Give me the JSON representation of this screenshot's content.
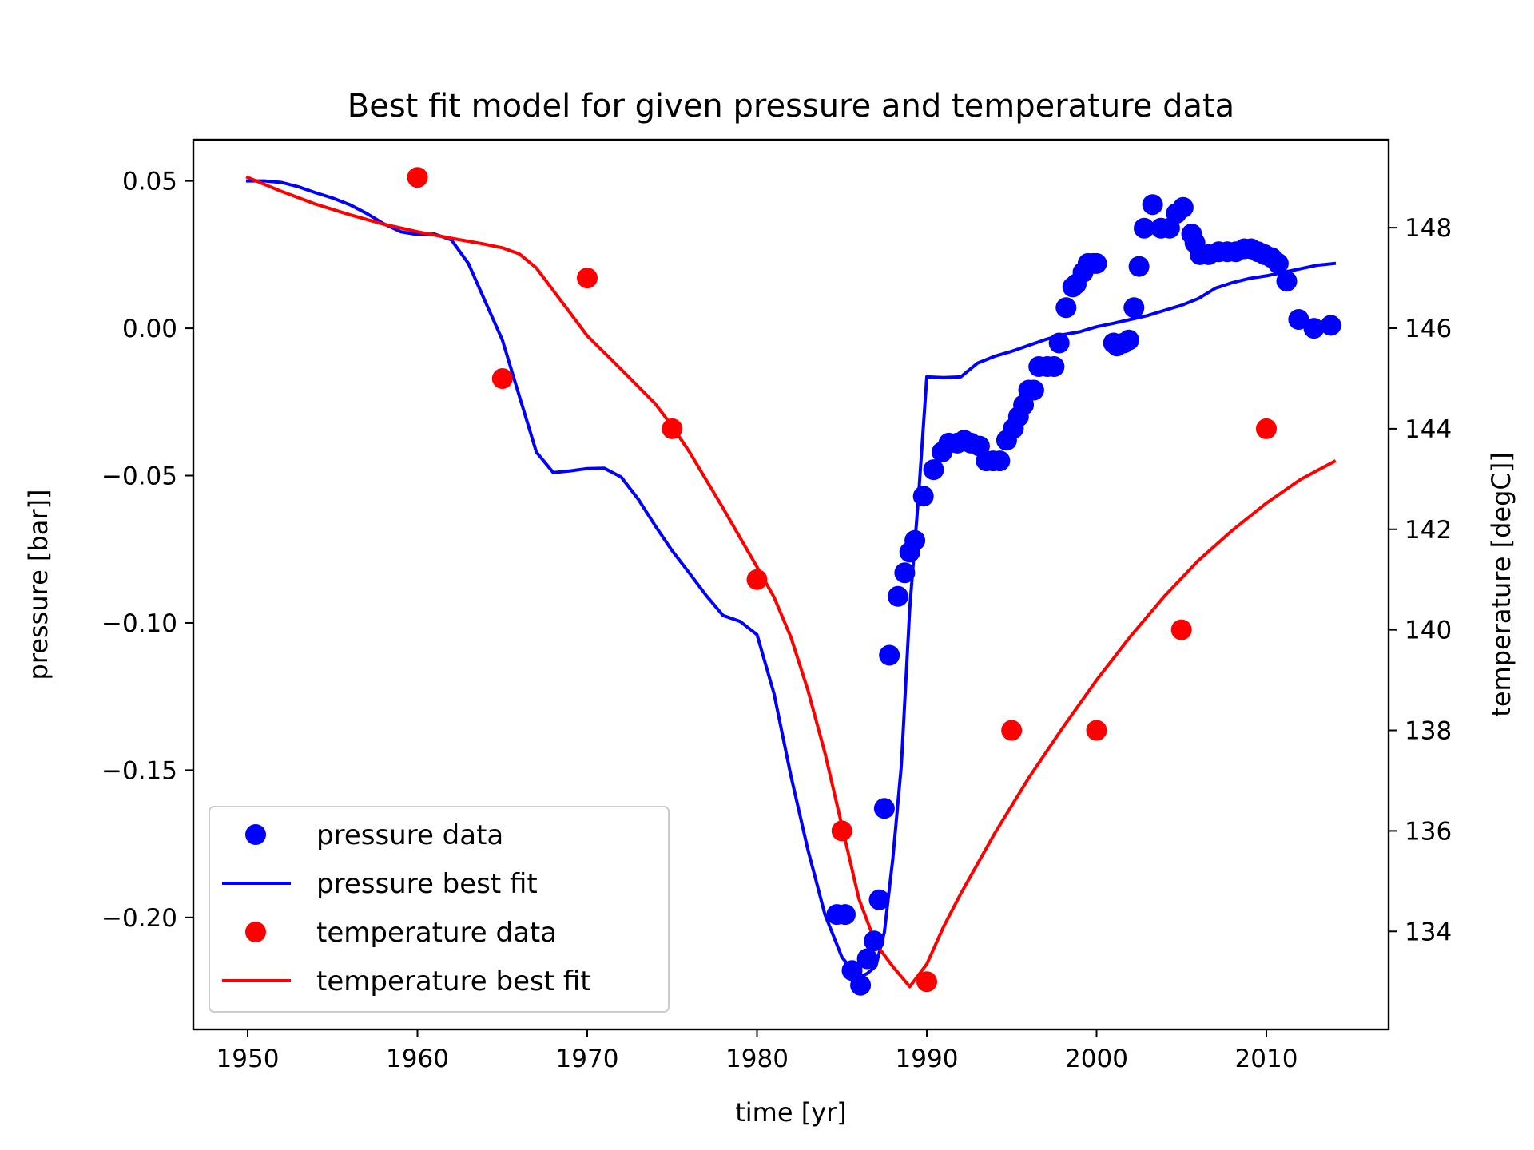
{
  "chart_data": {
    "type": "line",
    "title": "Best fit model for given pressure and temperature data",
    "xlabel": "time [yr]",
    "ylabel": "pressure [bar]]",
    "y2label": "temperature [degC]]",
    "xlim": [
      1946.8,
      2017.2
    ],
    "ylim": [
      -0.238,
      0.064
    ],
    "y2lim": [
      132.05,
      149.75
    ],
    "x_ticks": [
      {
        "value": 1950,
        "label": "1950"
      },
      {
        "value": 1960,
        "label": "1960"
      },
      {
        "value": 1970,
        "label": "1970"
      },
      {
        "value": 1980,
        "label": "1980"
      },
      {
        "value": 1990,
        "label": "1990"
      },
      {
        "value": 2000,
        "label": "2000"
      },
      {
        "value": 2010,
        "label": "2010"
      }
    ],
    "y_ticks": [
      {
        "value": 0.05,
        "label": "0.05"
      },
      {
        "value": 0.0,
        "label": "0.00"
      },
      {
        "value": -0.05,
        "label": "−0.05"
      },
      {
        "value": -0.1,
        "label": "−0.10"
      },
      {
        "value": -0.15,
        "label": "−0.15"
      },
      {
        "value": -0.2,
        "label": "−0.20"
      }
    ],
    "y2_ticks": [
      {
        "value": 134,
        "label": "134"
      },
      {
        "value": 136,
        "label": "136"
      },
      {
        "value": 138,
        "label": "138"
      },
      {
        "value": 140,
        "label": "140"
      },
      {
        "value": 142,
        "label": "142"
      },
      {
        "value": 144,
        "label": "144"
      },
      {
        "value": 146,
        "label": "146"
      },
      {
        "value": 148,
        "label": "148"
      }
    ],
    "grid": false,
    "legend_position": "lower-left",
    "series": [
      {
        "name": "pressure data",
        "kind": "scatter",
        "axis": "left",
        "color": "#0000ff",
        "x": [
          1984.7,
          1985.2,
          1985.6,
          1986.1,
          1986.5,
          1986.9,
          1987.2,
          1987.5,
          1987.8,
          1988.3,
          1988.7,
          1989.0,
          1989.3,
          1989.8,
          1990.4,
          1990.9,
          1991.3,
          1991.8,
          1992.2,
          1992.6,
          1993.1,
          1993.5,
          1993.9,
          1994.3,
          1994.7,
          1995.1,
          1995.4,
          1995.7,
          1996.0,
          1996.3,
          1996.6,
          1997.1,
          1997.5,
          1997.8,
          1998.2,
          1998.6,
          1998.8,
          1999.2,
          1999.5,
          1999.8,
          2000.0,
          2001.0,
          2001.2,
          2001.6,
          2001.9,
          2002.2,
          2002.5,
          2002.8,
          2003.3,
          2003.8,
          2004.3,
          2004.7,
          2005.1,
          2005.6,
          2005.8,
          2006.1,
          2006.6,
          2007.2,
          2007.7,
          2008.2,
          2008.7,
          2009.1,
          2009.5,
          2009.9,
          2010.3,
          2010.7,
          2011.2,
          2011.9,
          2012.8,
          2013.8
        ],
        "y": [
          -0.199,
          -0.199,
          -0.218,
          -0.223,
          -0.214,
          -0.208,
          -0.194,
          -0.163,
          -0.111,
          -0.091,
          -0.083,
          -0.076,
          -0.072,
          -0.057,
          -0.048,
          -0.042,
          -0.039,
          -0.039,
          -0.038,
          -0.039,
          -0.04,
          -0.045,
          -0.045,
          -0.045,
          -0.038,
          -0.034,
          -0.03,
          -0.026,
          -0.021,
          -0.021,
          -0.013,
          -0.013,
          -0.013,
          -0.005,
          0.007,
          0.014,
          0.015,
          0.019,
          0.022,
          0.022,
          0.022,
          -0.005,
          -0.006,
          -0.005,
          -0.004,
          0.007,
          0.021,
          0.034,
          0.042,
          0.034,
          0.034,
          0.039,
          0.041,
          0.032,
          0.029,
          0.025,
          0.025,
          0.026,
          0.026,
          0.026,
          0.027,
          0.027,
          0.026,
          0.025,
          0.024,
          0.022,
          0.016,
          0.003,
          0.0,
          0.001
        ]
      },
      {
        "name": "pressure best fit",
        "kind": "line",
        "axis": "left",
        "color": "#0000ff",
        "x": [
          1950,
          1951,
          1952,
          1953,
          1954,
          1955,
          1956,
          1957,
          1958,
          1959,
          1960,
          1961,
          1962,
          1963,
          1964,
          1965,
          1966,
          1967,
          1968,
          1969,
          1970,
          1971,
          1972,
          1973,
          1974,
          1975,
          1976,
          1977,
          1978,
          1979,
          1980,
          1981,
          1982,
          1983,
          1984,
          1985,
          1986,
          1986.5,
          1987,
          1987.5,
          1988,
          1988.5,
          1989,
          1989.5,
          1990,
          1991,
          1992,
          1993,
          1994,
          1995,
          1996,
          1997,
          1998,
          1999,
          2000,
          2001,
          2002,
          2003,
          2004,
          2005,
          2006,
          2007,
          2008,
          2009,
          2010,
          2011,
          2012,
          2013,
          2014
        ],
        "y": [
          0.05,
          0.05,
          0.0495,
          0.048,
          0.046,
          0.0442,
          0.042,
          0.039,
          0.0355,
          0.0328,
          0.0318,
          0.032,
          0.03,
          0.022,
          0.009,
          -0.004,
          -0.023,
          -0.042,
          -0.049,
          -0.0484,
          -0.0476,
          -0.0475,
          -0.0505,
          -0.058,
          -0.067,
          -0.0755,
          -0.083,
          -0.0907,
          -0.0975,
          -0.0995,
          -0.104,
          -0.124,
          -0.152,
          -0.177,
          -0.199,
          -0.2135,
          -0.2205,
          -0.219,
          -0.2165,
          -0.205,
          -0.18,
          -0.1485,
          -0.095,
          -0.058,
          -0.0165,
          -0.0167,
          -0.0165,
          -0.0118,
          -0.0095,
          -0.0078,
          -0.0058,
          -0.0038,
          -0.0022,
          -0.0012,
          0.0005,
          0.0017,
          0.003,
          0.0043,
          0.0061,
          0.0078,
          0.0101,
          0.0136,
          0.0155,
          0.0169,
          0.0178,
          0.019,
          0.0202,
          0.0214,
          0.022
        ]
      },
      {
        "name": "temperature data",
        "kind": "scatter",
        "axis": "right",
        "color": "#ff0000",
        "x": [
          1960,
          1965,
          1970,
          1975,
          1980,
          1985,
          1990,
          1995,
          2000,
          2005,
          2010
        ],
        "y": [
          149,
          145,
          147,
          144,
          141,
          136,
          133,
          138,
          138,
          140,
          144
        ]
      },
      {
        "name": "temperature best fit",
        "kind": "line",
        "axis": "right",
        "color": "#ff0000",
        "x": [
          1950,
          1952,
          1954,
          1956,
          1958,
          1960,
          1962,
          1964,
          1965,
          1966,
          1967,
          1968,
          1969,
          1970,
          1972,
          1974,
          1975,
          1976,
          1978,
          1980,
          1981,
          1982,
          1983,
          1984,
          1985,
          1986,
          1987,
          1988,
          1989,
          1990,
          1991,
          1992,
          1994,
          1996,
          1998,
          2000,
          2002,
          2004,
          2006,
          2008,
          2010,
          2012,
          2014
        ],
        "y": [
          149.0,
          148.72,
          148.47,
          148.26,
          148.07,
          147.92,
          147.79,
          147.67,
          147.6,
          147.48,
          147.2,
          146.75,
          146.3,
          145.85,
          145.18,
          144.5,
          144.05,
          143.55,
          142.42,
          141.25,
          140.65,
          139.85,
          138.8,
          137.55,
          136.1,
          134.65,
          133.75,
          133.3,
          132.9,
          133.35,
          134.1,
          134.75,
          135.95,
          137.05,
          138.05,
          139.0,
          139.87,
          140.67,
          141.38,
          141.98,
          142.52,
          142.99,
          143.35
        ]
      }
    ]
  }
}
